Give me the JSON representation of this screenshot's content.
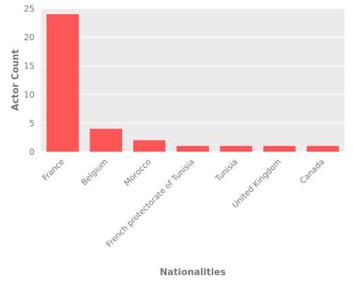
{
  "chart_data": {
    "type": "bar",
    "title": "",
    "xlabel": "Nationalities",
    "ylabel": "Actor Count",
    "categories": [
      "France",
      "Belgium",
      "Morocco",
      "French protectorate of Tunisia",
      "Tunisia",
      "United Kingdom",
      "Canada"
    ],
    "values": [
      24,
      4,
      2,
      1,
      1,
      1,
      1
    ],
    "ylim": [
      0,
      25
    ],
    "yticks": [
      "0",
      "5",
      "10",
      "15",
      "20",
      "25"
    ],
    "grid": true,
    "legend": "none",
    "colors": {
      "bar": "#ff5555",
      "plot_background": "#ebebeb",
      "gridline": "#ffffff",
      "text": "#777777"
    }
  }
}
